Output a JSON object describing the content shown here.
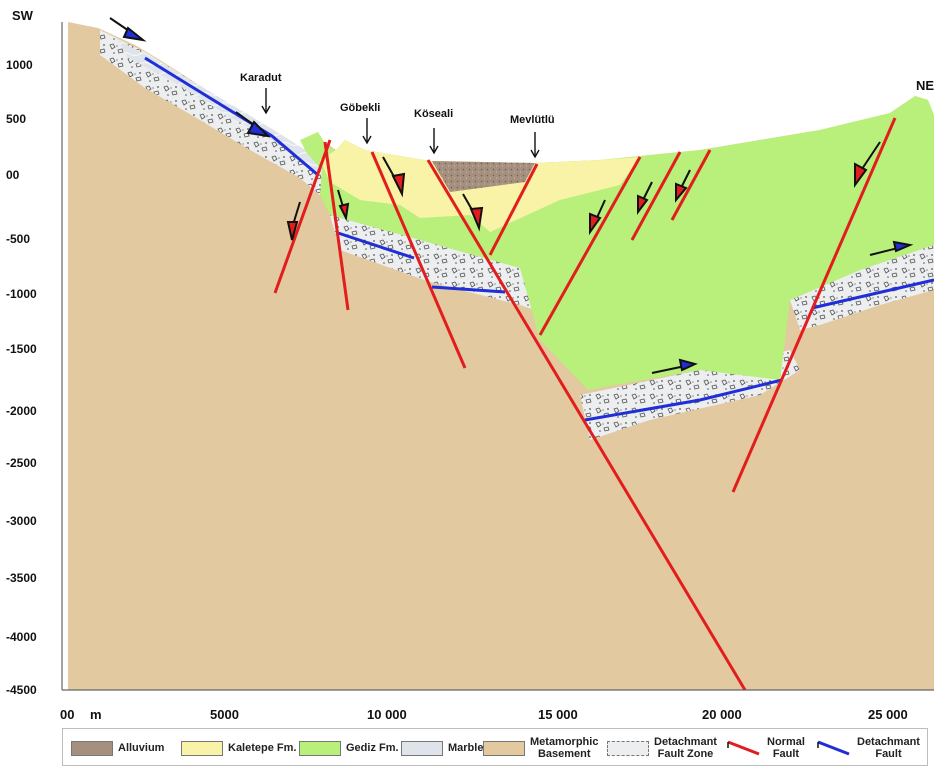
{
  "figure": {
    "left_label": "SW",
    "right_label": "NE",
    "localities": [
      "Karadut",
      "Göbekli",
      "Köseali",
      "Mevlütlü"
    ]
  },
  "y_axis": {
    "ticks": [
      "1000",
      "500",
      "00",
      "-500",
      "-1000",
      "-1500",
      "-2000",
      "-2500",
      "-3000",
      "-3500",
      "-4000",
      "-4500"
    ]
  },
  "x_axis": {
    "ticks": [
      "00",
      "m",
      "5000",
      "10 000",
      "15 000",
      "20 000",
      "25 000"
    ]
  },
  "legend": {
    "alluvium": "Alluvium",
    "kaletepe": "Kaletepe Fm.",
    "gediz": "Gediz Fm.",
    "marble": "Marble",
    "basement_1": "Metamorphic",
    "basement_2": "Basement",
    "dfz_1": "Detachmant",
    "dfz_2": "Fault Zone",
    "nf_1": "Normal",
    "nf_2": "Fault",
    "df_1": "Detachmant",
    "df_2": "Fault"
  },
  "colors": {
    "basement": "#e3c9a0",
    "gediz": "#b9ef7b",
    "kaletepe": "#f8f3a6",
    "alluvium": "#a58f7f",
    "marble": "#d8dee6",
    "normal_fault": "#e21d1d",
    "detachment_fault": "#1f2ed6"
  }
}
